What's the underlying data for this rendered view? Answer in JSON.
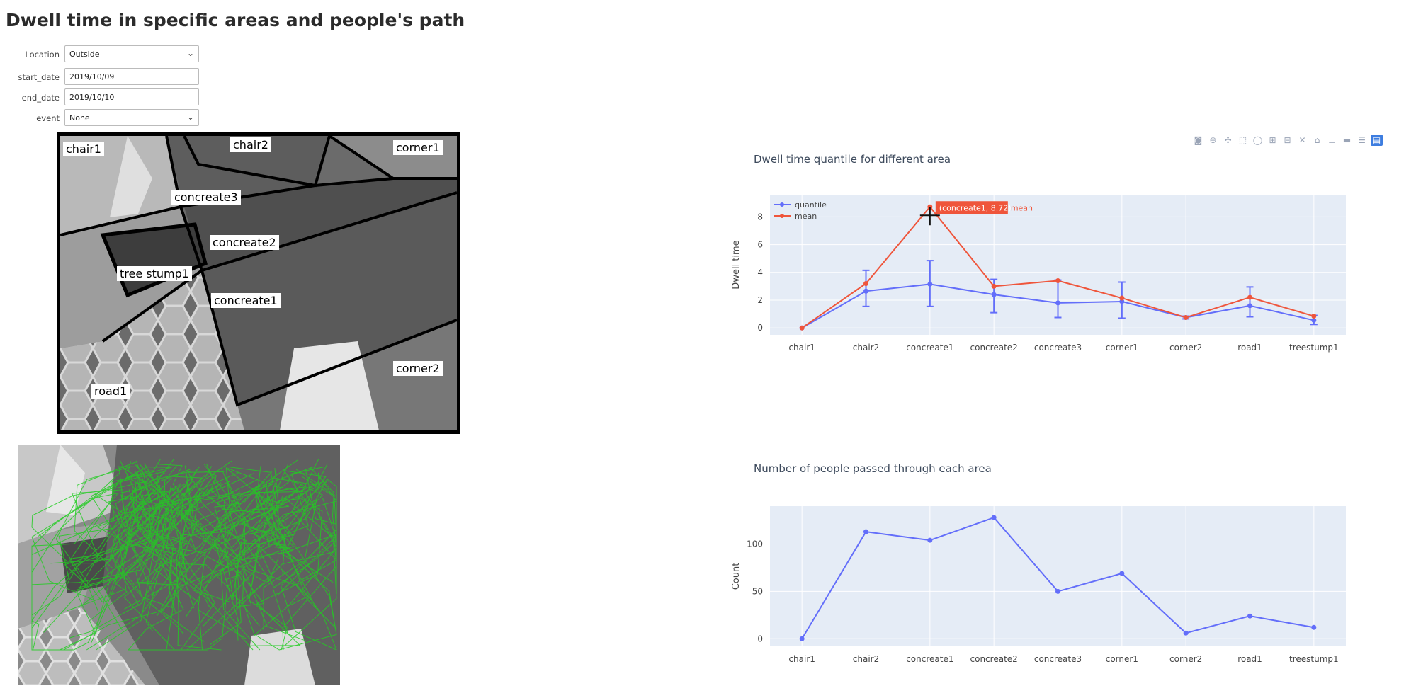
{
  "page": {
    "title": "Dwell time in specific areas and people's path"
  },
  "form": {
    "location": {
      "label": "Location",
      "value": "Outside"
    },
    "start_date": {
      "label": "start_date",
      "value": "2019/10/09"
    },
    "end_date": {
      "label": "end_date",
      "value": "2019/10/10"
    },
    "event": {
      "label": "event",
      "value": "None"
    }
  },
  "zone_map": {
    "labels": {
      "chair1": "chair1",
      "chair2": "chair2",
      "corner1": "corner1",
      "concreate3": "concreate3",
      "concreate2": "concreate2",
      "tree_stump1": "tree stump1",
      "concreate1": "concreate1",
      "corner2": "corner2",
      "road1": "road1"
    }
  },
  "toolbar": {
    "icons": [
      "camera-icon",
      "zoom-icon",
      "pan-icon",
      "box-select-icon",
      "lasso-icon",
      "zoom-in-icon",
      "zoom-out-icon",
      "autoscale-icon",
      "reset-axes-icon",
      "spike-lines-icon",
      "compare-hover-icon",
      "closest-hover-icon",
      "plotly-logo-icon"
    ]
  },
  "colors": {
    "quantile": "#636efa",
    "mean": "#ef553b",
    "plot_bg": "#e5ecf6",
    "green_path": "#22cc22"
  },
  "chart_data": [
    {
      "type": "line",
      "title": "Dwell time quantile for different area",
      "ylabel": "Dwell time",
      "xlabel": "",
      "categories": [
        "chair1",
        "chair2",
        "concreate1",
        "concreate2",
        "concreate3",
        "corner1",
        "corner2",
        "road1",
        "treestump1"
      ],
      "ylim": [
        -0.5,
        9.6
      ],
      "yticks": [
        0,
        2,
        4,
        6,
        8
      ],
      "grid": true,
      "legend": "top-left",
      "series": [
        {
          "name": "quantile",
          "values": [
            0,
            2.65,
            3.15,
            2.4,
            1.8,
            1.9,
            0.75,
            1.6,
            0.55
          ],
          "error_low": [
            0,
            1.1,
            1.6,
            1.3,
            1.05,
            1.2,
            0.1,
            0.8,
            0.3
          ],
          "error_high": [
            0,
            1.5,
            1.7,
            1.1,
            1.65,
            1.4,
            0.1,
            1.35,
            0.35
          ]
        },
        {
          "name": "mean",
          "values": [
            0,
            3.2,
            8.72,
            3.0,
            3.4,
            2.15,
            0.75,
            2.2,
            0.85
          ]
        }
      ],
      "hover": {
        "category": "concreate1",
        "value": "8.72",
        "series": "mean",
        "text": "(concreate1, 8.72)"
      }
    },
    {
      "type": "line",
      "title": "Number of people passed through each area",
      "ylabel": "Count",
      "xlabel": "",
      "categories": [
        "chair1",
        "chair2",
        "concreate1",
        "concreate2",
        "concreate3",
        "corner1",
        "corner2",
        "road1",
        "treestump1"
      ],
      "ylim": [
        -8,
        140
      ],
      "yticks": [
        0,
        50,
        100
      ],
      "grid": true,
      "series": [
        {
          "name": "",
          "values": [
            0,
            113,
            104,
            128,
            50,
            69,
            6,
            24,
            12
          ]
        }
      ]
    }
  ]
}
